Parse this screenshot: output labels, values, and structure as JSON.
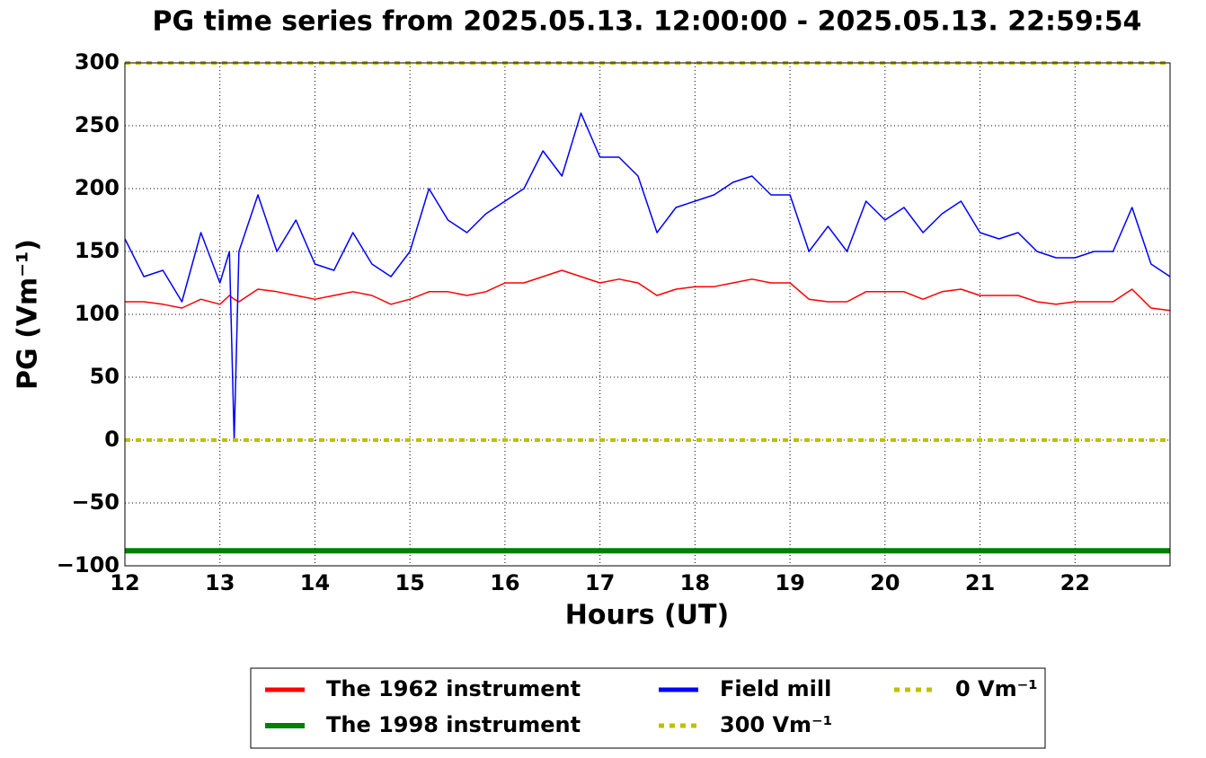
{
  "chart_data": {
    "type": "line",
    "title": "PG time series from 2025.05.13. 12:00:00 - 2025.05.13. 22:59:54",
    "xlabel": "Hours (UT)",
    "ylabel": "PG (Vm⁻¹)",
    "x": [
      12.0,
      12.2,
      12.4,
      12.6,
      12.8,
      13.0,
      13.1,
      13.15,
      13.2,
      13.4,
      13.6,
      13.8,
      14.0,
      14.2,
      14.4,
      14.6,
      14.8,
      15.0,
      15.2,
      15.4,
      15.6,
      15.8,
      16.0,
      16.2,
      16.4,
      16.6,
      16.8,
      17.0,
      17.2,
      17.4,
      17.6,
      17.8,
      18.0,
      18.2,
      18.4,
      18.6,
      18.8,
      19.0,
      19.2,
      19.4,
      19.6,
      19.8,
      20.0,
      20.2,
      20.4,
      20.6,
      20.8,
      21.0,
      21.2,
      21.4,
      21.6,
      21.8,
      22.0,
      22.2,
      22.4,
      22.6,
      22.8,
      23.0
    ],
    "series": [
      {
        "name": "The 1962 instrument",
        "color": "#ff0000",
        "width": 1.5,
        "values": [
          110,
          110,
          108,
          105,
          112,
          108,
          115,
          112,
          110,
          120,
          118,
          115,
          112,
          115,
          118,
          115,
          108,
          112,
          118,
          118,
          115,
          118,
          125,
          125,
          130,
          135,
          130,
          125,
          128,
          125,
          115,
          120,
          122,
          122,
          125,
          128,
          125,
          125,
          112,
          110,
          110,
          118,
          118,
          118,
          112,
          118,
          120,
          115,
          115,
          115,
          110,
          108,
          110,
          110,
          110,
          120,
          105,
          103
        ]
      },
      {
        "name": "The 1998 instrument",
        "color": "#008000",
        "width": 6,
        "x": [
          12,
          23
        ],
        "values": [
          -88,
          -88
        ]
      },
      {
        "name": "Field mill",
        "color": "#0000ff",
        "width": 1.5,
        "values": [
          160,
          130,
          135,
          110,
          165,
          125,
          150,
          0,
          150,
          195,
          150,
          175,
          140,
          135,
          165,
          140,
          130,
          150,
          200,
          175,
          165,
          180,
          190,
          200,
          230,
          210,
          260,
          225,
          225,
          210,
          165,
          185,
          190,
          195,
          205,
          210,
          195,
          195,
          150,
          170,
          150,
          190,
          175,
          185,
          165,
          180,
          190,
          165,
          160,
          165,
          150,
          145,
          145,
          150,
          150,
          185,
          140,
          130
        ]
      },
      {
        "name": "300 Vm⁻¹",
        "color": "#bfbf00",
        "width": 4,
        "dash": true,
        "x": [
          12,
          23
        ],
        "values": [
          300,
          300
        ]
      },
      {
        "name": "0 Vm⁻¹",
        "color": "#bfbf00",
        "width": 4,
        "dash": true,
        "x": [
          12,
          23
        ],
        "values": [
          0,
          0
        ]
      }
    ],
    "xlim": [
      12,
      23
    ],
    "xticks": [
      12,
      13,
      14,
      15,
      16,
      17,
      18,
      19,
      20,
      21,
      22
    ],
    "ylim": [
      -100,
      300
    ],
    "yticks": [
      {
        "value": -100,
        "label": "−100"
      },
      {
        "value": -50,
        "label": "−50"
      },
      0,
      50,
      100,
      150,
      200,
      250,
      300
    ],
    "grid": true,
    "legend": "bottom"
  }
}
